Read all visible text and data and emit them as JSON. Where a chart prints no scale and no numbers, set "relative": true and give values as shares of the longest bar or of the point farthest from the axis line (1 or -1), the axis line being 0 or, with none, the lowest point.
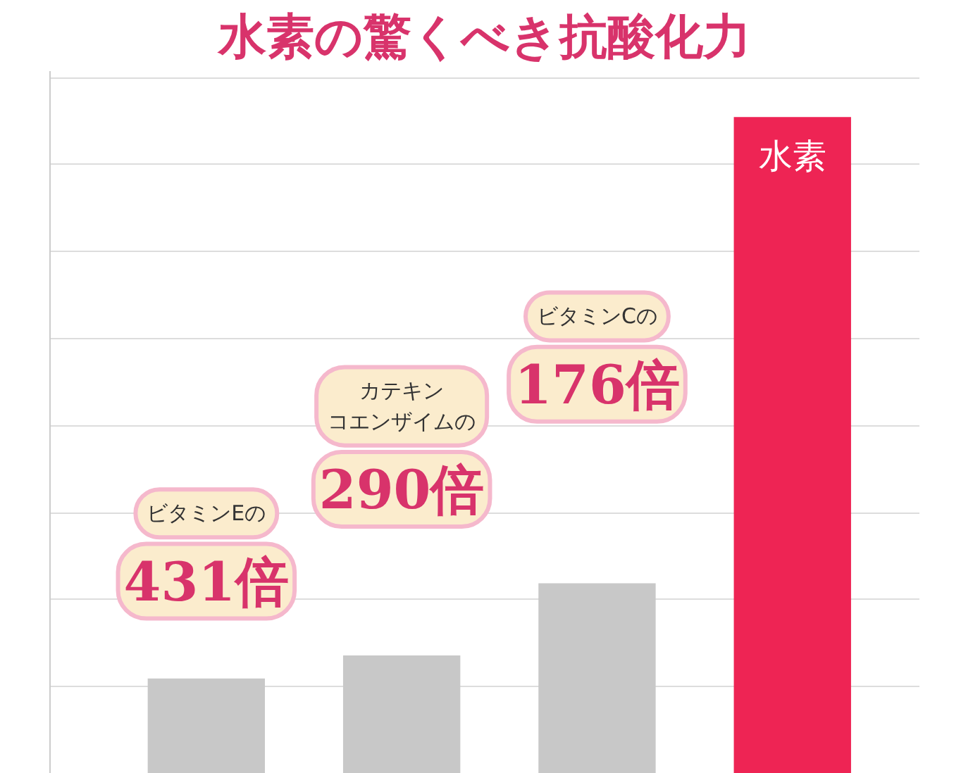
{
  "chart_data": {
    "type": "bar",
    "title": "水素の驚くべき抗酸化力",
    "relative": true,
    "categories": [
      null,
      null,
      null,
      null
    ],
    "values": [
      0.145,
      0.18,
      0.29,
      1
    ],
    "colors": [
      "#c8c8c8",
      "#c8c8c8",
      "#c8c8c8",
      "#ee2454"
    ],
    "grid": "y",
    "annotations": [
      {
        "text": "水素"
      },
      "ビタミンEの",
      "431倍",
      "カテキンコエンザイムの",
      "290倍",
      "ビタミンCの",
      "176倍"
    ]
  }
}
